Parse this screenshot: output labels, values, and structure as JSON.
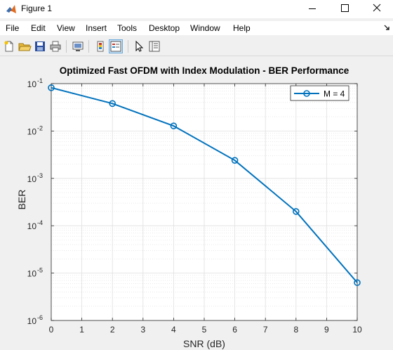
{
  "window": {
    "title": "Figure 1"
  },
  "menu": [
    "File",
    "Edit",
    "View",
    "Insert",
    "Tools",
    "Desktop",
    "Window",
    "Help"
  ],
  "toolbar": {
    "buttons": [
      "new-figure",
      "open-file",
      "save-figure",
      "print-figure",
      "link-plot",
      "hide-plot-tools",
      "show-plot-tools",
      "edit-plot",
      "property-inspector"
    ]
  },
  "chart_data": {
    "type": "line",
    "title": "Optimized Fast OFDM with Index Modulation - BER Performance",
    "xlabel": "SNR (dB)",
    "ylabel": "BER",
    "xlim": [
      0,
      10
    ],
    "ylim": [
      1e-06,
      0.1
    ],
    "yscale": "log",
    "grid": true,
    "legend_position": "top-right",
    "x_ticks": [
      "0",
      "1",
      "2",
      "3",
      "4",
      "5",
      "6",
      "7",
      "8",
      "9",
      "10"
    ],
    "y_ticks": [
      {
        "base": "10",
        "exp": "-6"
      },
      {
        "base": "10",
        "exp": "-5"
      },
      {
        "base": "10",
        "exp": "-4"
      },
      {
        "base": "10",
        "exp": "-3"
      },
      {
        "base": "10",
        "exp": "-2"
      },
      {
        "base": "10",
        "exp": "-1"
      }
    ],
    "series": [
      {
        "name": "M = 4",
        "color": "#0072bd",
        "marker": "circle",
        "x": [
          0,
          2,
          4,
          6,
          8,
          10
        ],
        "y": [
          0.082,
          0.038,
          0.0128,
          0.0024,
          0.0002,
          6.3e-06
        ]
      }
    ]
  }
}
